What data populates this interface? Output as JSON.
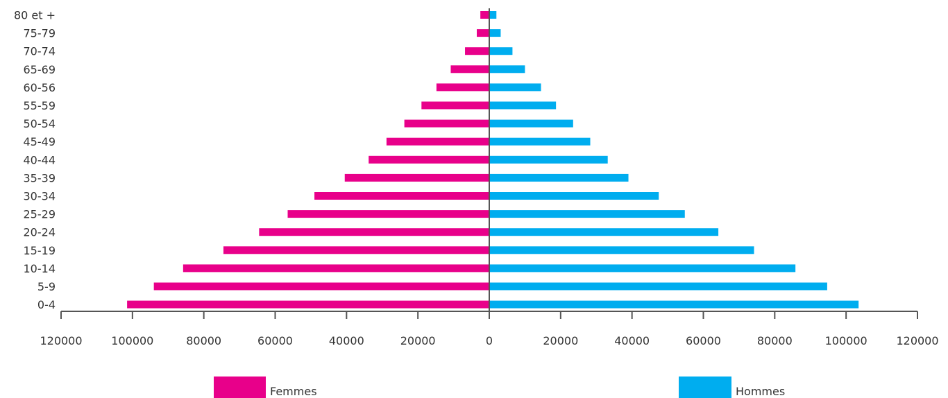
{
  "chart_data": {
    "type": "bar",
    "orientation": "horizontal",
    "layout": "population-pyramid",
    "title": "",
    "xlabel": "",
    "ylabel": "",
    "categories": [
      "80 et +",
      "75-79",
      "70-74",
      "65-69",
      "60-56",
      "55-59",
      "50-54",
      "45-49",
      "40-44",
      "35-39",
      "30-34",
      "25-29",
      "20-24",
      "15-19",
      "10-14",
      "5-9",
      "0-4"
    ],
    "series": [
      {
        "name": "Femmes",
        "side": "left",
        "color": "#e8008a",
        "values": [
          2500,
          3500,
          6800,
          10800,
          14800,
          19000,
          23800,
          28800,
          33800,
          40500,
          49000,
          56500,
          64500,
          74500,
          85800,
          94000,
          101500
        ]
      },
      {
        "name": "Hommes",
        "side": "right",
        "color": "#00adef",
        "values": [
          2000,
          3200,
          6500,
          10000,
          14500,
          18700,
          23500,
          28300,
          33200,
          39000,
          47500,
          54800,
          64200,
          74200,
          85800,
          94700,
          103500
        ]
      }
    ],
    "xlim": [
      -120000,
      120000
    ],
    "x_ticks": [
      -120000,
      -100000,
      -80000,
      -60000,
      -40000,
      -20000,
      0,
      20000,
      40000,
      60000,
      80000,
      100000,
      120000
    ],
    "x_tick_labels": [
      "120000",
      "100000",
      "80000",
      "60000",
      "40000",
      "20000",
      "0",
      "20000",
      "40000",
      "60000",
      "80000",
      "100000",
      "120000"
    ],
    "grid": false,
    "legend": {
      "placement": "bottom",
      "entries": [
        "Femmes",
        "Hommes"
      ]
    },
    "axis_color": "#555555"
  }
}
